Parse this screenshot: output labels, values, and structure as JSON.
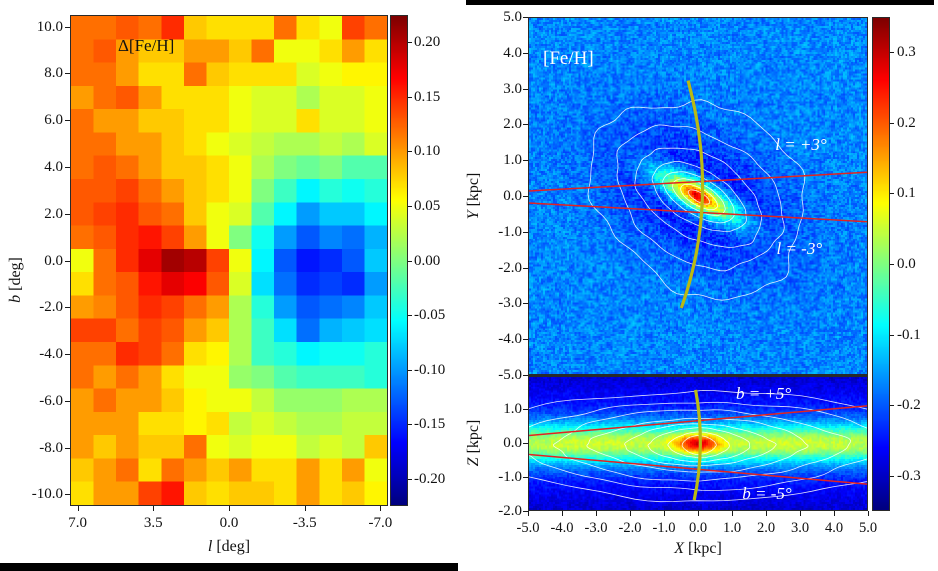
{
  "figure_description": "Two-panel bulge metallicity figure: observed residual map in galactic coordinates and simulated X-Y / X-Z metallicity maps",
  "chart_data": [
    {
      "id": "delta_feh_lb_map",
      "type": "heatmap",
      "title": "Δ[Fe/H]",
      "xlabel": {
        "var": "l",
        "unit": " [deg]"
      },
      "ylabel": {
        "var": "b",
        "unit": " [deg]"
      },
      "xlim": [
        7.35,
        -7.35
      ],
      "ylim": [
        -10.5,
        10.5
      ],
      "x_tick_labels": [
        "7.0",
        "3.5",
        "0.0",
        "-3.5",
        "-7.0"
      ],
      "x_tick_values": [
        7.0,
        3.5,
        0.0,
        -3.5,
        -7.0
      ],
      "y_tick_labels": [
        "10.0",
        "8.0",
        "6.0",
        "4.0",
        "2.0",
        "0.0",
        "-2.0",
        "-4.0",
        "-6.0",
        "-8.0",
        "-10.0"
      ],
      "y_tick_values": [
        10,
        8,
        6,
        4,
        2,
        0,
        -2,
        -4,
        -6,
        -8,
        -10
      ],
      "colormap": "jet",
      "grid_on": false,
      "colorbar": {
        "vmin": -0.225,
        "vmax": 0.225,
        "tick_labels": [
          "0.20",
          "0.15",
          "0.10",
          "0.05",
          "0.00",
          "-0.05",
          "-0.10",
          "-0.15",
          "-0.20"
        ],
        "tick_values": [
          0.2,
          0.15,
          0.1,
          0.05,
          0.0,
          -0.05,
          -0.1,
          -0.15,
          -0.2
        ]
      },
      "grid": {
        "n_cols": 14,
        "n_rows": 21,
        "col_axis": "l from +7.35 to -7.35 deg (1.05 deg cells, left to right)",
        "row_axis": "b from +10.5 to -10.5 deg (1.0 deg cells, top to bottom)",
        "values": [
          [
            0.12,
            0.12,
            0.13,
            0.12,
            0.15,
            0.08,
            0.07,
            0.07,
            0.07,
            0.12,
            0.07,
            0.05,
            0.14,
            0.12
          ],
          [
            0.12,
            0.13,
            0.1,
            0.08,
            0.08,
            0.1,
            0.1,
            0.08,
            0.12,
            0.05,
            0.05,
            0.07,
            0.1,
            0.07
          ],
          [
            0.12,
            0.12,
            0.1,
            0.07,
            0.07,
            0.12,
            0.08,
            0.07,
            0.07,
            0.07,
            0.04,
            0.05,
            0.06,
            0.06
          ],
          [
            0.1,
            0.12,
            0.13,
            0.1,
            0.07,
            0.07,
            0.07,
            0.05,
            0.04,
            0.04,
            0.02,
            0.04,
            0.04,
            0.05
          ],
          [
            0.12,
            0.1,
            0.1,
            0.08,
            0.08,
            0.07,
            0.07,
            0.05,
            0.04,
            0.04,
            0.07,
            0.04,
            0.04,
            0.05
          ],
          [
            0.12,
            0.12,
            0.1,
            0.1,
            0.08,
            0.07,
            0.05,
            0.04,
            0.03,
            0.02,
            0.02,
            0.03,
            0.02,
            0.04
          ],
          [
            0.12,
            0.13,
            0.12,
            0.1,
            0.08,
            0.08,
            0.07,
            0.05,
            0.02,
            0.0,
            -0.01,
            0.0,
            -0.02,
            -0.02
          ],
          [
            0.13,
            0.13,
            0.14,
            0.12,
            0.1,
            0.08,
            0.07,
            0.05,
            0.0,
            -0.03,
            -0.06,
            -0.04,
            -0.05,
            -0.04
          ],
          [
            0.13,
            0.14,
            0.15,
            0.13,
            0.12,
            0.08,
            0.05,
            0.04,
            -0.02,
            -0.06,
            -0.1,
            -0.08,
            -0.08,
            -0.06
          ],
          [
            0.12,
            0.13,
            0.15,
            0.16,
            0.14,
            0.1,
            0.05,
            0.0,
            -0.05,
            -0.1,
            -0.13,
            -0.11,
            -0.12,
            -0.09
          ],
          [
            0.05,
            0.12,
            0.15,
            0.18,
            0.21,
            0.2,
            0.14,
            0.05,
            -0.06,
            -0.13,
            -0.16,
            -0.15,
            -0.13,
            -0.08
          ],
          [
            0.07,
            0.12,
            0.13,
            0.16,
            0.18,
            0.17,
            0.13,
            0.04,
            -0.07,
            -0.12,
            -0.15,
            -0.14,
            -0.15,
            -0.1
          ],
          [
            0.1,
            0.11,
            0.13,
            0.15,
            0.14,
            0.12,
            0.1,
            0.02,
            -0.04,
            -0.1,
            -0.13,
            -0.12,
            -0.11,
            -0.08
          ],
          [
            0.14,
            0.14,
            0.12,
            0.14,
            0.13,
            0.1,
            0.08,
            0.02,
            -0.03,
            -0.07,
            -0.12,
            -0.09,
            -0.08,
            -0.07
          ],
          [
            0.12,
            0.12,
            0.15,
            0.14,
            0.12,
            0.07,
            0.06,
            0.02,
            -0.03,
            -0.04,
            -0.06,
            -0.05,
            -0.05,
            -0.04
          ],
          [
            0.12,
            0.1,
            0.12,
            0.1,
            0.07,
            0.05,
            0.05,
            0.01,
            0.0,
            -0.02,
            -0.03,
            -0.03,
            -0.03,
            -0.04
          ],
          [
            0.1,
            0.12,
            0.1,
            0.1,
            0.08,
            0.06,
            0.05,
            0.05,
            0.03,
            0.01,
            0.01,
            0.01,
            0.02,
            0.02
          ],
          [
            0.1,
            0.1,
            0.1,
            0.07,
            0.07,
            0.06,
            0.07,
            0.03,
            0.04,
            0.03,
            0.02,
            0.02,
            0.03,
            0.03
          ],
          [
            0.1,
            0.08,
            0.1,
            0.08,
            0.08,
            0.12,
            0.05,
            0.04,
            0.05,
            0.05,
            0.03,
            0.04,
            0.03,
            0.08
          ],
          [
            0.08,
            0.1,
            0.12,
            0.07,
            0.12,
            0.1,
            0.08,
            0.1,
            0.07,
            0.07,
            0.1,
            0.07,
            0.1,
            0.05
          ],
          [
            0.07,
            0.1,
            0.1,
            0.14,
            0.16,
            0.08,
            0.07,
            0.08,
            0.08,
            0.07,
            0.1,
            0.07,
            0.08,
            0.06
          ]
        ]
      }
    },
    {
      "id": "feh_xy_map",
      "type": "heatmap",
      "title": "[Fe/H]",
      "xlabel": {
        "var": "X",
        "unit": " [kpc]"
      },
      "ylabel": {
        "var": "Y",
        "unit": " [kpc]"
      },
      "xlim": [
        -5,
        5
      ],
      "ylim": [
        -5,
        5
      ],
      "y_tick_labels": [
        "5.0",
        "4.0",
        "3.0",
        "2.0",
        "1.0",
        "0.0",
        "-1.0",
        "-2.0",
        "-3.0",
        "-4.0",
        "-5.0"
      ],
      "y_tick_values": [
        5,
        4,
        3,
        2,
        1,
        0,
        -1,
        -2,
        -3,
        -4,
        -5
      ],
      "colormap": "jet",
      "field_model": {
        "background": -0.17,
        "noise_amp": 0.05,
        "dip": {
          "amp": -0.1,
          "sigma_major": 2.0,
          "sigma_minor": 1.15,
          "angle_deg": -28
        },
        "bar_components": [
          {
            "amp": 0.4,
            "sigma_major": 1.0,
            "sigma_minor": 0.3,
            "angle_deg": -28
          },
          {
            "amp": 0.16,
            "sigma_major": 0.3,
            "sigma_minor": 0.13,
            "angle_deg": -28
          }
        ]
      },
      "contours": {
        "color": "#ffffff",
        "angle_deg": -28,
        "exponent": 2,
        "seed": 11,
        "levels": [
          {
            "a": 0.35,
            "b": 0.13,
            "wobble": 0.01
          },
          {
            "a": 0.6,
            "b": 0.24,
            "wobble": 0.012
          },
          {
            "a": 0.85,
            "b": 0.36,
            "wobble": 0.015
          },
          {
            "a": 1.15,
            "b": 0.52,
            "wobble": 0.02
          },
          {
            "a": 1.5,
            "b": 0.75,
            "wobble": 0.03
          },
          {
            "a": 2.0,
            "b": 1.16,
            "wobble": 0.04
          },
          {
            "a": 2.6,
            "b": 1.77,
            "wobble": 0.055
          },
          {
            "a": 3.3,
            "b": 2.57,
            "wobble": 0.09
          }
        ]
      },
      "sight_lines": {
        "origin_x_kpc": -8.2,
        "angles_deg": [
          3,
          -3
        ],
        "color": "#e32222"
      },
      "bar_curve": {
        "color": "#b9ba14",
        "points": [
          [
            -0.32,
            3.25
          ],
          [
            0.1,
            0.0
          ],
          [
            -0.52,
            -3.1
          ]
        ]
      },
      "annotations": [
        {
          "text": "l = +3°",
          "x": 3.0,
          "y": 1.45
        },
        {
          "text": "l = -3°",
          "x": 2.95,
          "y": -1.45
        }
      ]
    },
    {
      "id": "feh_xz_map",
      "type": "heatmap",
      "title": "",
      "xlabel": {
        "var": "X",
        "unit": " [kpc]"
      },
      "ylabel": {
        "var": "Z",
        "unit": " [kpc]"
      },
      "xlim": [
        -5,
        5
      ],
      "ylim": [
        -2,
        2
      ],
      "x_tick_labels": [
        "-5.0",
        "-4.0",
        "-3.0",
        "-2.0",
        "-1.0",
        "0.0",
        "1.0",
        "2.0",
        "3.0",
        "4.0",
        "5.0"
      ],
      "x_tick_values": [
        -5,
        -4,
        -3,
        -2,
        -1,
        0,
        1,
        2,
        3,
        4,
        5
      ],
      "y_tick_labels": [
        "1.0",
        "0.0",
        "-1.0",
        "-2.0"
      ],
      "y_tick_values": [
        1,
        0,
        -1,
        -2
      ],
      "colormap": "jet",
      "field_model": {
        "background": -0.32,
        "noise_amp": 0.03,
        "thin_disk": {
          "amp": 0.24,
          "sigma_z": 0.43
        },
        "thick_disk": {
          "amp": 0.11,
          "sigma_z": 1.2
        },
        "wings": {
          "amp": 0.025,
          "center_abs_x": 2.9,
          "sigma_x": 1.3,
          "sigma_z": 0.35
        },
        "core": {
          "amp": 0.26,
          "sigma_x": 0.45,
          "sigma_z": 0.2
        }
      },
      "contours": {
        "color": "#ffffff",
        "angle_deg": 0,
        "exponent": 1.7,
        "seed": 29,
        "levels": [
          {
            "a": 0.5,
            "b": 0.28,
            "wobble": 0.02
          },
          {
            "a": 0.9,
            "b": 0.38,
            "wobble": 0.025
          },
          {
            "a": 1.5,
            "b": 0.5,
            "wobble": 0.03
          },
          {
            "a": 2.2,
            "b": 0.62,
            "wobble": 0.035
          },
          {
            "a": 3.2,
            "b": 0.8,
            "wobble": 0.045
          },
          {
            "a": 4.3,
            "b": 1.05,
            "wobble": 0.05
          },
          {
            "a": 5.6,
            "b": 1.3,
            "wobble": 0.06
          },
          {
            "a": 7.2,
            "b": 1.62,
            "wobble": 0.06
          }
        ]
      },
      "sight_lines": {
        "origin_x_kpc": -8.2,
        "angles_deg": [
          5,
          -5
        ],
        "color": "#e32222"
      },
      "bar_curve": {
        "color": "#b9ba14",
        "points": [
          [
            -0.1,
            1.62
          ],
          [
            0.04,
            0.0
          ],
          [
            -0.14,
            -1.62
          ]
        ]
      },
      "annotations": [
        {
          "text": "b = +5°",
          "x": 1.9,
          "y": 1.5
        },
        {
          "text": "b = -5°",
          "x": 2.0,
          "y": -1.45
        }
      ]
    }
  ],
  "shared_colorbar_right": {
    "colormap": "jet",
    "vmin": -0.35,
    "vmax": 0.35,
    "tick_labels": [
      "0.3",
      "0.2",
      "0.1",
      "0.0",
      "-0.1",
      "-0.2",
      "-0.3"
    ],
    "tick_values": [
      0.3,
      0.2,
      0.1,
      0.0,
      -0.1,
      -0.2,
      -0.3
    ]
  }
}
